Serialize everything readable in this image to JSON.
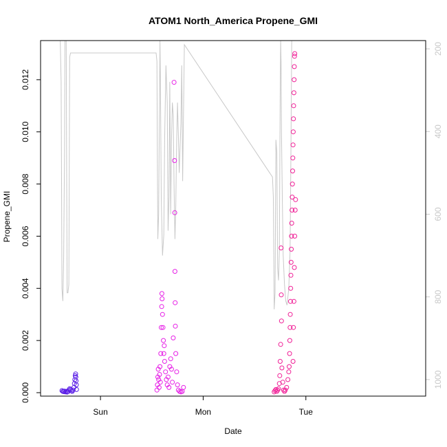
{
  "chart_data": {
    "type": "scatter",
    "title": "ATOM1 North_America Propene_GMI",
    "xlabel": "Date",
    "ylabel": "Propene_GMI",
    "ylim": [
      0,
      0.0135
    ],
    "y_ticks": [
      "0.000",
      "0.002",
      "0.004",
      "0.006",
      "0.008",
      "0.010",
      "0.012"
    ],
    "x_range_hours": [
      -14,
      76
    ],
    "x_ticks": [
      {
        "label": "Sun",
        "hours": 0
      },
      {
        "label": "Mon",
        "hours": 24
      },
      {
        "label": "Tue",
        "hours": 48
      }
    ],
    "right_axis": {
      "quantity": "pressure",
      "reversed": true,
      "range": [
        180,
        1040
      ],
      "ticks": [
        "200",
        "400",
        "600",
        "800",
        "1000"
      ],
      "color": "#c8c8c8"
    },
    "grid": false,
    "legend": "none",
    "marker": "open-circle",
    "series": [
      {
        "color": "#5a1ee6",
        "points": [
          [
            -9.0,
            8e-05
          ],
          [
            -8.8,
            5e-05
          ],
          [
            -8.6,
            4e-05
          ],
          [
            -8.4,
            6e-05
          ],
          [
            -8.2,
            3e-05
          ],
          [
            -8.0,
            5e-05
          ],
          [
            -7.8,
            2e-05
          ],
          [
            -7.6,
            4e-05
          ],
          [
            -7.4,
            0.0001
          ],
          [
            -7.2,
            0.00015
          ],
          [
            -7.0,
            0.00012
          ],
          [
            -6.8,
            8e-05
          ],
          [
            -6.6,
            5e-05
          ],
          [
            -6.4,
            0.0001
          ],
          [
            -6.2,
            0.0002
          ],
          [
            -6.1,
            0.00035
          ],
          [
            -6.0,
            0.0005
          ],
          [
            -5.9,
            0.00065
          ],
          [
            -5.8,
            0.00072
          ],
          [
            -5.75,
            0.0006
          ],
          [
            -5.7,
            0.00045
          ],
          [
            -5.65,
            0.0003
          ],
          [
            -5.6,
            0.00012
          ]
        ]
      },
      {
        "color": "#e61ee6",
        "points": [
          [
            13.2,
            0.0001
          ],
          [
            13.3,
            0.0003
          ],
          [
            13.4,
            0.0006
          ],
          [
            13.5,
            0.0009
          ],
          [
            13.6,
            0.0005
          ],
          [
            13.7,
            0.0002
          ],
          [
            13.8,
            0.0007
          ],
          [
            13.9,
            0.001
          ],
          [
            14.0,
            0.0004
          ],
          [
            14.1,
            0.0015
          ],
          [
            14.2,
            0.0025
          ],
          [
            14.3,
            0.0033
          ],
          [
            14.35,
            0.0038
          ],
          [
            14.4,
            0.0036
          ],
          [
            14.5,
            0.003
          ],
          [
            14.6,
            0.0025
          ],
          [
            14.7,
            0.002
          ],
          [
            14.8,
            0.0015
          ],
          [
            14.9,
            0.0018
          ],
          [
            15.0,
            0.0012
          ],
          [
            15.2,
            0.0008
          ],
          [
            15.4,
            0.0005
          ],
          [
            15.6,
            0.0003
          ],
          [
            15.8,
            0.0006
          ],
          [
            16.0,
            0.0002
          ],
          [
            16.2,
            0.001
          ],
          [
            16.4,
            0.0013
          ],
          [
            16.6,
            0.0009
          ],
          [
            16.8,
            0.0004
          ],
          [
            17.0,
            0.0021
          ],
          [
            17.2,
            0.0119
          ],
          [
            17.3,
            0.0089
          ],
          [
            17.35,
            0.0069
          ],
          [
            17.4,
            0.00465
          ],
          [
            17.45,
            0.00345
          ],
          [
            17.5,
            0.00255
          ],
          [
            17.6,
            0.0015
          ],
          [
            17.8,
            0.0008
          ],
          [
            18.0,
            0.0003
          ],
          [
            18.2,
            0.0001
          ],
          [
            18.5,
            5e-05
          ],
          [
            18.8,
            3e-05
          ],
          [
            19.1,
            5e-05
          ],
          [
            19.4,
            0.0002
          ]
        ]
      },
      {
        "color": "#f01e96",
        "points": [
          [
            40.6,
            3e-05
          ],
          [
            40.8,
            8e-05
          ],
          [
            41.0,
            0.00012
          ],
          [
            41.2,
            5e-05
          ],
          [
            41.4,
            0.0001
          ],
          [
            41.6,
            0.00015
          ],
          [
            41.8,
            0.00035
          ],
          [
            41.9,
            0.00065
          ],
          [
            42.0,
            0.0012
          ],
          [
            42.1,
            0.00185
          ],
          [
            42.2,
            0.00555
          ],
          [
            42.25,
            0.00375
          ],
          [
            42.3,
            0.00275
          ],
          [
            42.4,
            0.00095
          ],
          [
            42.6,
            0.0004
          ],
          [
            42.8,
            0.0001
          ],
          [
            43.0,
            5e-05
          ],
          [
            43.2,
            0.0001
          ],
          [
            43.5,
            0.0002
          ],
          [
            43.8,
            0.0005
          ],
          [
            44.0,
            0.0008
          ],
          [
            44.1,
            0.001
          ],
          [
            44.2,
            0.0015
          ],
          [
            44.25,
            0.002
          ],
          [
            44.3,
            0.0025
          ],
          [
            44.35,
            0.003
          ],
          [
            44.4,
            0.0035
          ],
          [
            44.45,
            0.004
          ],
          [
            44.5,
            0.0045
          ],
          [
            44.55,
            0.005
          ],
          [
            44.6,
            0.0055
          ],
          [
            44.65,
            0.006
          ],
          [
            44.7,
            0.0065
          ],
          [
            44.75,
            0.007
          ],
          [
            44.8,
            0.0075
          ],
          [
            44.85,
            0.008
          ],
          [
            44.9,
            0.0085
          ],
          [
            44.95,
            0.009
          ],
          [
            45.0,
            0.0095
          ],
          [
            45.05,
            0.01
          ],
          [
            45.1,
            0.0105
          ],
          [
            45.15,
            0.011
          ],
          [
            45.2,
            0.0115
          ],
          [
            45.25,
            0.012
          ],
          [
            45.3,
            0.0125
          ],
          [
            45.35,
            0.0129
          ],
          [
            45.4,
            0.013
          ],
          [
            45.0,
            0.0012
          ],
          [
            45.1,
            0.0025
          ],
          [
            45.2,
            0.0035
          ],
          [
            45.3,
            0.0048
          ],
          [
            45.4,
            0.006
          ],
          [
            45.5,
            0.007
          ],
          [
            45.6,
            0.0074
          ]
        ]
      }
    ],
    "pressure_line": {
      "color": "#c8c8c8",
      "points": [
        [
          -9.4,
          180
        ],
        [
          -9.2,
          280
        ],
        [
          -9.1,
          520
        ],
        [
          -9.0,
          780
        ],
        [
          -8.8,
          810
        ],
        [
          -8.6,
          700
        ],
        [
          -8.4,
          460
        ],
        [
          -8.3,
          180
        ],
        [
          -8.0,
          180
        ],
        [
          -7.9,
          520
        ],
        [
          -7.8,
          790
        ],
        [
          -7.6,
          790
        ],
        [
          -7.4,
          770
        ],
        [
          -7.3,
          500
        ],
        [
          -7.2,
          220
        ],
        [
          -7.0,
          210
        ],
        [
          13.0,
          210
        ],
        [
          13.2,
          230
        ],
        [
          13.3,
          480
        ],
        [
          13.4,
          660
        ],
        [
          13.6,
          600
        ],
        [
          13.8,
          320
        ],
        [
          13.9,
          180
        ],
        [
          14.0,
          260
        ],
        [
          14.2,
          560
        ],
        [
          14.5,
          700
        ],
        [
          14.8,
          650
        ],
        [
          15.0,
          420
        ],
        [
          15.3,
          240
        ],
        [
          15.6,
          330
        ],
        [
          15.8,
          640
        ],
        [
          16.0,
          560
        ],
        [
          16.2,
          280
        ],
        [
          16.4,
          600
        ],
        [
          16.6,
          420
        ],
        [
          16.8,
          330
        ],
        [
          17.0,
          360
        ],
        [
          17.2,
          530
        ],
        [
          17.4,
          660
        ],
        [
          17.6,
          580
        ],
        [
          17.8,
          420
        ],
        [
          18.0,
          330
        ],
        [
          18.2,
          410
        ],
        [
          18.4,
          500
        ],
        [
          18.6,
          440
        ],
        [
          18.8,
          380
        ],
        [
          19.0,
          240
        ],
        [
          19.2,
          520
        ],
        [
          19.4,
          360
        ],
        [
          19.6,
          190
        ],
        [
          40.2,
          510
        ],
        [
          40.4,
          560
        ],
        [
          40.6,
          830
        ],
        [
          40.8,
          790
        ],
        [
          41.0,
          420
        ],
        [
          41.2,
          450
        ],
        [
          41.4,
          730
        ],
        [
          41.6,
          760
        ],
        [
          41.8,
          690
        ],
        [
          42.0,
          320
        ],
        [
          42.1,
          180
        ],
        [
          42.2,
          230
        ],
        [
          42.3,
          400
        ],
        [
          42.5,
          570
        ],
        [
          42.7,
          700
        ],
        [
          43.0,
          770
        ],
        [
          43.3,
          810
        ],
        [
          43.6,
          820
        ],
        [
          44.0,
          780
        ],
        [
          44.3,
          690
        ],
        [
          44.5,
          460
        ],
        [
          44.7,
          180
        ]
      ]
    }
  }
}
